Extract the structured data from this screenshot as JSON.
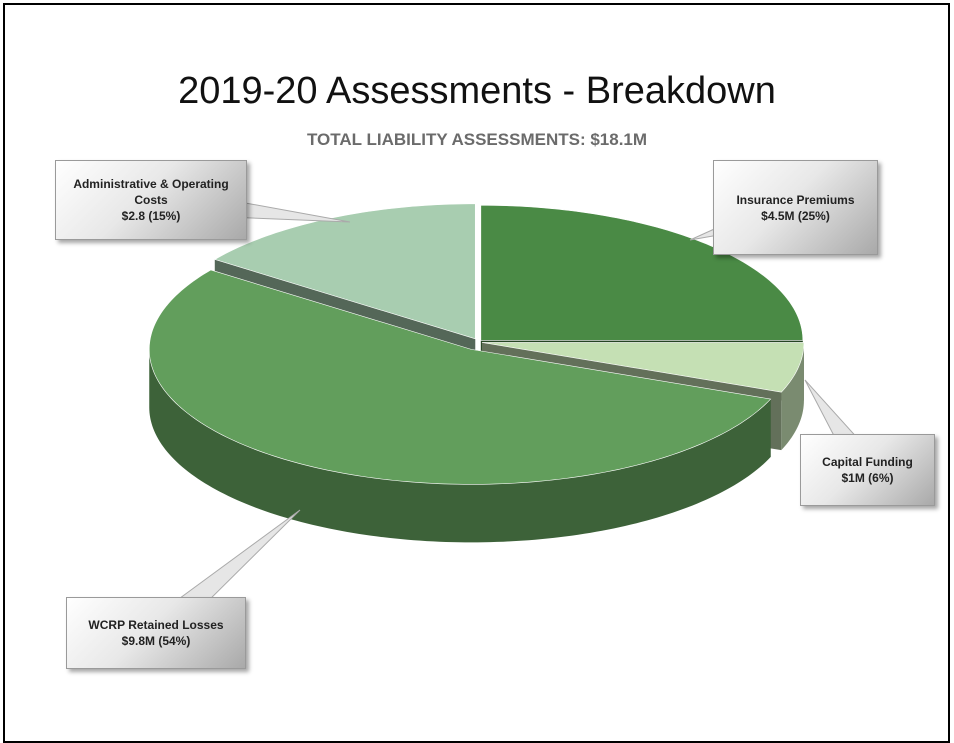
{
  "chart_data": {
    "type": "pie",
    "title": "2019-20 Assessments - Breakdown",
    "subtitle": "TOTAL LIABILITY ASSESSMENTS:  $18.1M",
    "categories": [
      "Insurance  Premiums",
      "Capital Funding",
      "WCRP Retained Losses",
      "Administrative & Operating Costs"
    ],
    "values": [
      25,
      6,
      54,
      15
    ],
    "value_labels": [
      "$4.5M (25%)",
      "$1M (6%)",
      "$9.8M (54%)",
      "$2.8 (15%)"
    ],
    "colors": [
      "#4a8a45",
      "#c5e0b4",
      "#629e5c",
      "#a8cdb0"
    ]
  }
}
